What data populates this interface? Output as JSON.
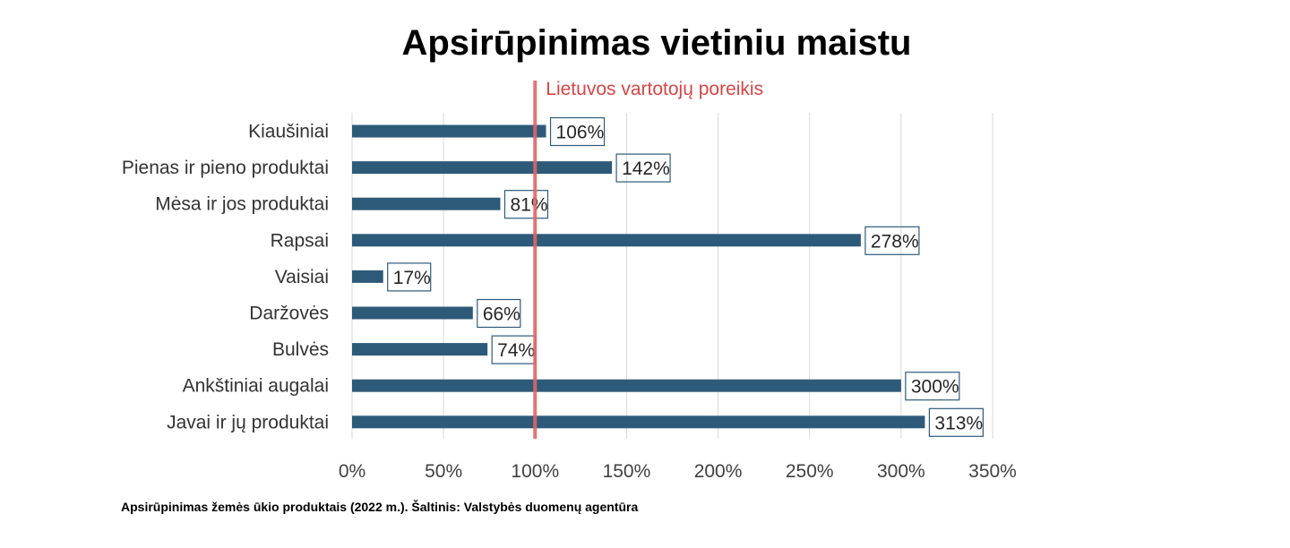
{
  "chart_data": {
    "type": "bar",
    "orientation": "horizontal",
    "title": "Apsirūpinimas vietiniu maistu",
    "categories": [
      "Kiaušiniai",
      "Pienas ir pieno produktai",
      "Mėsa ir jos produktai",
      "Rapsai",
      "Vaisiai",
      "Daržovės",
      "Bulvės",
      "Ankštiniai augalai",
      "Javai ir jų produktai"
    ],
    "values": [
      106,
      142,
      81,
      278,
      17,
      66,
      74,
      300,
      313
    ],
    "value_labels": [
      "106%",
      "142%",
      "81%",
      "278%",
      "17%",
      "66%",
      "74%",
      "300%",
      "313%"
    ],
    "xlim": [
      0,
      350
    ],
    "x_ticks": [
      0,
      50,
      100,
      150,
      200,
      250,
      300,
      350
    ],
    "x_tick_labels": [
      "0%",
      "50%",
      "100%",
      "150%",
      "200%",
      "250%",
      "300%",
      "350%"
    ],
    "grid": "vertical",
    "reference_line": {
      "value": 100,
      "label": "Lietuvos vartotojų poreikis",
      "color": "#e06666"
    },
    "bar_color": "#2e5a7a",
    "footnote": "Apsirūpinimas žemės ūkio produktais (2022 m.). Šaltinis: Valstybės duomenų agentūra"
  }
}
